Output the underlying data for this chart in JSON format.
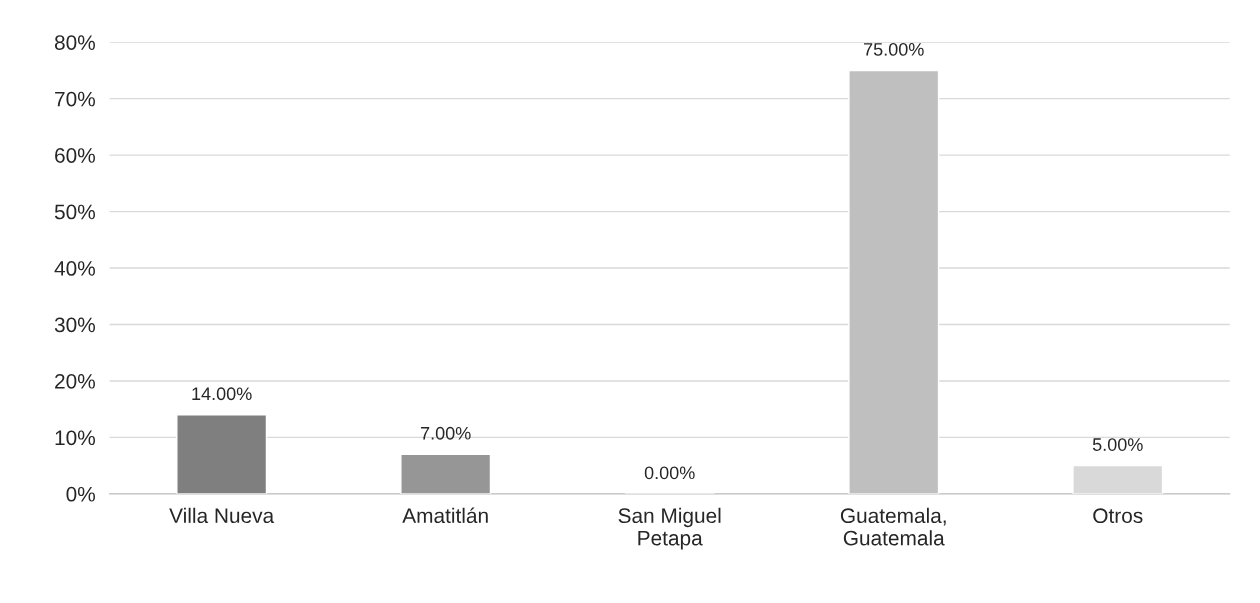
{
  "chart_data": {
    "type": "bar",
    "categories": [
      "Villa Nueva",
      "Amatitlán",
      "San Miguel\nPetapa",
      "Guatemala,\nGuatemala",
      "Otros"
    ],
    "values": [
      14,
      7,
      0,
      75,
      5
    ],
    "colors": [
      "#7f7f7f",
      "#969696",
      null,
      "#bfbfbf",
      "#d9d9d9"
    ],
    "value_labels": [
      "14.00%",
      "7.00%",
      "0.00%",
      "75.00%",
      "5.00%"
    ],
    "ylim": [
      0,
      80
    ],
    "yticks": [
      {
        "value": 0,
        "label": "0%"
      },
      {
        "value": 10,
        "label": "10%"
      },
      {
        "value": 20,
        "label": "20%"
      },
      {
        "value": 30,
        "label": "30%"
      },
      {
        "value": 40,
        "label": "40%"
      },
      {
        "value": 50,
        "label": "50%"
      },
      {
        "value": 60,
        "label": "60%"
      },
      {
        "value": 70,
        "label": "70%"
      },
      {
        "value": 80,
        "label": "80%"
      }
    ],
    "grid": "y"
  }
}
